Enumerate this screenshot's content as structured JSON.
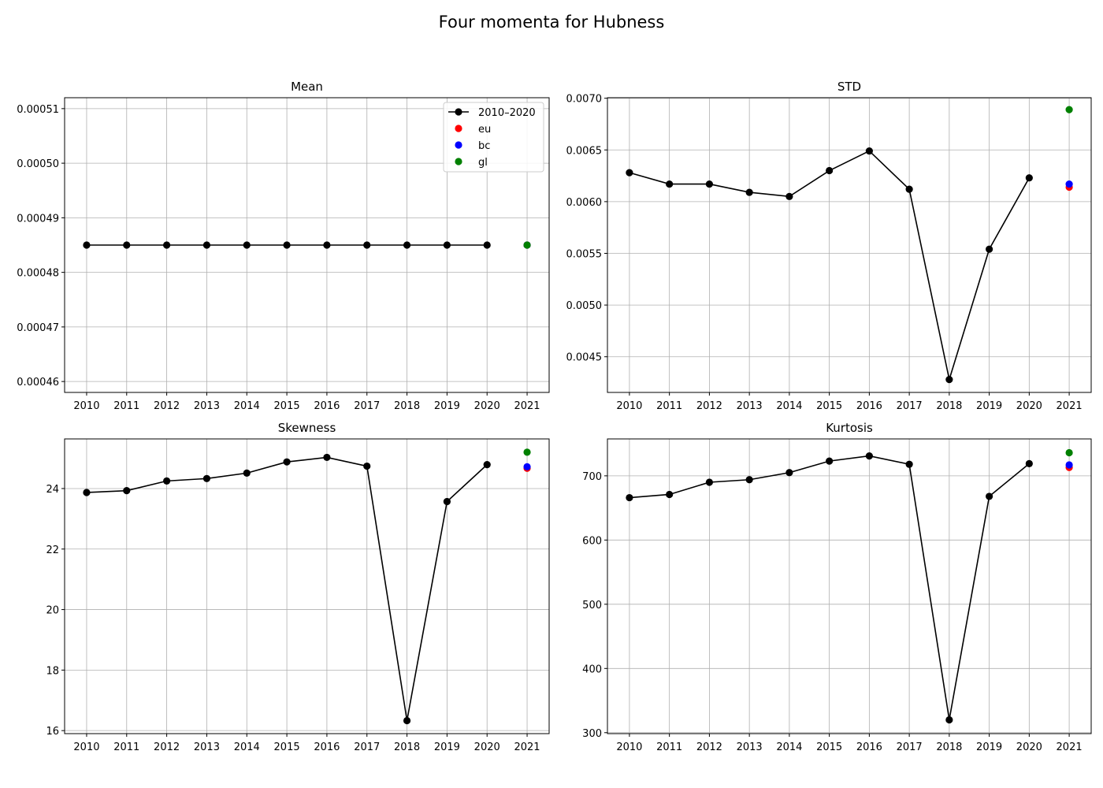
{
  "suptitle": "Four momenta for Hubness",
  "chart_data": [
    {
      "type": "line",
      "title": "Mean",
      "xlabel": "",
      "ylabel": "",
      "x": [
        2010,
        2011,
        2012,
        2013,
        2014,
        2015,
        2016,
        2017,
        2018,
        2019,
        2020
      ],
      "series": [
        {
          "name": "2010–2020",
          "color": "#000000",
          "marker": "circle",
          "values": [
            0.000485,
            0.000485,
            0.000485,
            0.000485,
            0.000485,
            0.000485,
            0.000485,
            0.000485,
            0.000485,
            0.000485,
            0.000485
          ]
        }
      ],
      "points_2021": [
        {
          "name": "eu",
          "color": "#ff0000",
          "value": 0.000485
        },
        {
          "name": "bc",
          "color": "#0000ff",
          "value": 0.000485
        },
        {
          "name": "gl",
          "color": "#008000",
          "value": 0.000485
        }
      ],
      "xticks": [
        "2010",
        "2011",
        "2012",
        "2013",
        "2014",
        "2015",
        "2016",
        "2017",
        "2018",
        "2019",
        "2020",
        "2021"
      ],
      "yticks": [
        0.00046,
        0.00047,
        0.00048,
        0.00049,
        0.0005,
        0.00051
      ],
      "ytick_labels": [
        "0.00046",
        "0.00047",
        "0.00048",
        "0.00049",
        "0.00050",
        "0.00051"
      ],
      "ylim": [
        0.000458,
        0.000512
      ],
      "grid": true,
      "legend": {
        "placement": "top-right",
        "entries": [
          "2010–2020",
          "eu",
          "bc",
          "gl"
        ]
      }
    },
    {
      "type": "line",
      "title": "STD",
      "xlabel": "",
      "ylabel": "",
      "x": [
        2010,
        2011,
        2012,
        2013,
        2014,
        2015,
        2016,
        2017,
        2018,
        2019,
        2020
      ],
      "series": [
        {
          "name": "2010–2020",
          "color": "#000000",
          "marker": "circle",
          "values": [
            0.00628,
            0.00617,
            0.00617,
            0.00609,
            0.00605,
            0.0063,
            0.00649,
            0.00612,
            0.00428,
            0.00554,
            0.00623
          ]
        }
      ],
      "points_2021": [
        {
          "name": "eu",
          "color": "#ff0000",
          "value": 0.00614
        },
        {
          "name": "bc",
          "color": "#0000ff",
          "value": 0.00617
        },
        {
          "name": "gl",
          "color": "#008000",
          "value": 0.00689
        }
      ],
      "xticks": [
        "2010",
        "2011",
        "2012",
        "2013",
        "2014",
        "2015",
        "2016",
        "2017",
        "2018",
        "2019",
        "2020",
        "2021"
      ],
      "yticks": [
        0.0045,
        0.005,
        0.0055,
        0.006,
        0.0065,
        0.007
      ],
      "ytick_labels": [
        "0.0045",
        "0.0050",
        "0.0055",
        "0.0060",
        "0.0065",
        "0.0070"
      ],
      "ylim": [
        0.004155,
        0.007005
      ],
      "grid": true
    },
    {
      "type": "line",
      "title": "Skewness",
      "xlabel": "",
      "ylabel": "",
      "x": [
        2010,
        2011,
        2012,
        2013,
        2014,
        2015,
        2016,
        2017,
        2018,
        2019,
        2020
      ],
      "series": [
        {
          "name": "2010–2020",
          "color": "#000000",
          "marker": "circle",
          "values": [
            23.87,
            23.93,
            24.25,
            24.33,
            24.51,
            24.88,
            25.03,
            24.74,
            16.33,
            23.57,
            24.79
          ]
        }
      ],
      "points_2021": [
        {
          "name": "eu",
          "color": "#ff0000",
          "value": 24.67
        },
        {
          "name": "bc",
          "color": "#0000ff",
          "value": 24.72
        },
        {
          "name": "gl",
          "color": "#008000",
          "value": 25.2
        }
      ],
      "xticks": [
        "2010",
        "2011",
        "2012",
        "2013",
        "2014",
        "2015",
        "2016",
        "2017",
        "2018",
        "2019",
        "2020",
        "2021"
      ],
      "yticks": [
        16,
        18,
        20,
        22,
        24
      ],
      "ytick_labels": [
        "16",
        "18",
        "20",
        "22",
        "24"
      ],
      "ylim": [
        15.9,
        25.64
      ],
      "grid": true
    },
    {
      "type": "line",
      "title": "Kurtosis",
      "xlabel": "",
      "ylabel": "",
      "x": [
        2010,
        2011,
        2012,
        2013,
        2014,
        2015,
        2016,
        2017,
        2018,
        2019,
        2020
      ],
      "series": [
        {
          "name": "2010–2020",
          "color": "#000000",
          "marker": "circle",
          "values": [
            666,
            671,
            690,
            694,
            705,
            723,
            731,
            718,
            320,
            668,
            719
          ]
        }
      ],
      "points_2021": [
        {
          "name": "eu",
          "color": "#ff0000",
          "value": 713
        },
        {
          "name": "bc",
          "color": "#0000ff",
          "value": 717
        },
        {
          "name": "gl",
          "color": "#008000",
          "value": 736
        }
      ],
      "xticks": [
        "2010",
        "2011",
        "2012",
        "2013",
        "2014",
        "2015",
        "2016",
        "2017",
        "2018",
        "2019",
        "2020",
        "2021"
      ],
      "yticks": [
        300,
        400,
        500,
        600,
        700
      ],
      "ytick_labels": [
        "300",
        "400",
        "500",
        "600",
        "700"
      ],
      "ylim": [
        298.5,
        757.5
      ],
      "grid": true
    }
  ]
}
